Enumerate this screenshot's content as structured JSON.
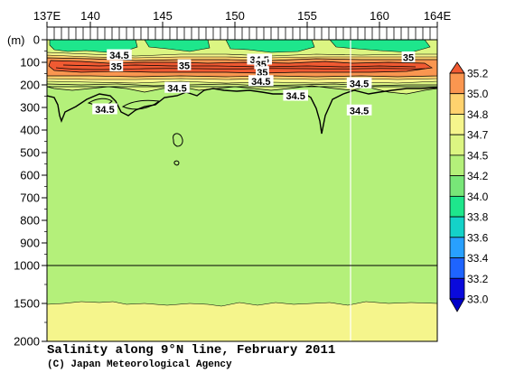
{
  "chart_data": {
    "type": "heatmap",
    "title": "Salinity along 9°N line, February 2011",
    "credit": "(C) Japan Meteorological Agency",
    "x_axis": {
      "range": [
        137,
        164
      ],
      "ticks": [
        137,
        140,
        145,
        150,
        155,
        160,
        164
      ],
      "tick_labels": [
        "137E",
        "140",
        "145",
        "150",
        "155",
        "160",
        "164E"
      ]
    },
    "y_axis": {
      "unit_label": "(m)",
      "ticks": [
        0,
        100,
        200,
        300,
        400,
        500,
        600,
        700,
        800,
        900,
        1000,
        1500,
        2000
      ],
      "tick_labels": [
        "0",
        "100",
        "200",
        "300",
        "400",
        "500",
        "600",
        "700",
        "800",
        "900",
        "1000",
        "1500",
        "2000"
      ],
      "scale_break_at": 1000,
      "inverted": true
    },
    "colorbar": {
      "levels": [
        33.0,
        33.2,
        33.4,
        33.6,
        33.8,
        34.0,
        34.2,
        34.5,
        34.7,
        34.8,
        35.0,
        35.2
      ],
      "labels": [
        "33.0",
        "33.2",
        "33.4",
        "33.6",
        "33.8",
        "34.0",
        "34.2",
        "34.5",
        "34.7",
        "34.8",
        "35.0",
        "35.2"
      ],
      "colors": [
        "#0a0adc",
        "#1e64ff",
        "#28a0ff",
        "#14d2c8",
        "#1ee68c",
        "#78e678",
        "#b4f07a",
        "#dcf582",
        "#f5f58c",
        "#ffd26e",
        "#fa9650",
        "#f05a32"
      ]
    },
    "contour_labels": [
      {
        "lon": 142.0,
        "depth": 70,
        "text": "34.5"
      },
      {
        "lon": 141.8,
        "depth": 120,
        "text": "35"
      },
      {
        "lon": 146.5,
        "depth": 115,
        "text": "35"
      },
      {
        "lon": 146.0,
        "depth": 215,
        "text": "34.5"
      },
      {
        "lon": 141.0,
        "depth": 310,
        "text": "34.5"
      },
      {
        "lon": 151.7,
        "depth": 90,
        "text": "34.5"
      },
      {
        "lon": 151.8,
        "depth": 110,
        "text": "35"
      },
      {
        "lon": 151.9,
        "depth": 145,
        "text": "35"
      },
      {
        "lon": 151.8,
        "depth": 185,
        "text": "34.5"
      },
      {
        "lon": 154.2,
        "depth": 250,
        "text": "34.5"
      },
      {
        "lon": 158.6,
        "depth": 195,
        "text": "34.5"
      },
      {
        "lon": 158.6,
        "depth": 315,
        "text": "34.5"
      },
      {
        "lon": 162.0,
        "depth": 80,
        "text": "35"
      }
    ]
  }
}
